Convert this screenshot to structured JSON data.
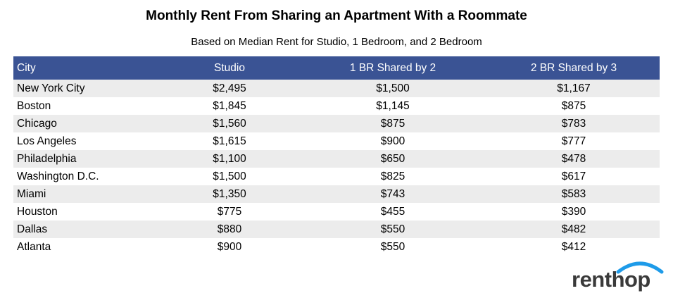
{
  "chart_data": {
    "type": "table",
    "title": "Monthly Rent From Sharing an Apartment With a Roommate",
    "subtitle": "Based on Median Rent for Studio, 1 Bedroom, and 2 Bedroom",
    "columns": [
      "City",
      "Studio",
      "1 BR Shared by 2",
      "2 BR Shared by 3"
    ],
    "rows": [
      [
        "New York City",
        "$2,495",
        "$1,500",
        "$1,167"
      ],
      [
        "Boston",
        "$1,845",
        "$1,145",
        "$875"
      ],
      [
        "Chicago",
        "$1,560",
        "$875",
        "$783"
      ],
      [
        "Los Angeles",
        "$1,615",
        "$900",
        "$777"
      ],
      [
        "Philadelphia",
        "$1,100",
        "$650",
        "$478"
      ],
      [
        "Washington D.C.",
        "$1,500",
        "$825",
        "$617"
      ],
      [
        "Miami",
        "$1,350",
        "$743",
        "$583"
      ],
      [
        "Houston",
        "$775",
        "$455",
        "$390"
      ],
      [
        "Dallas",
        "$880",
        "$550",
        "$482"
      ],
      [
        "Atlanta",
        "$900",
        "$550",
        "$412"
      ]
    ]
  },
  "brand": {
    "name": "renthop",
    "arc_color": "#1e9be9",
    "text_color": "#3a3a3a"
  },
  "colors": {
    "header_bg": "#3a5394",
    "stripe": "#ececec"
  }
}
